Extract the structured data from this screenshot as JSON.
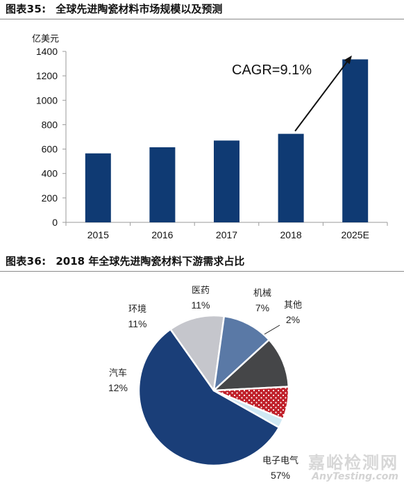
{
  "figure1": {
    "label": "图表35:",
    "title": "全球先进陶瓷材料市场规模以及预测"
  },
  "figure2": {
    "label": "图表36:",
    "title": "2018 年全球先进陶瓷材料下游需求占比"
  },
  "watermark": {
    "main": "嘉峪检测网",
    "sub": "AnyTesting.com"
  },
  "colors": {
    "bar": "#0f3a73",
    "axis": "#9a9a9a",
    "arrow": "#111111"
  },
  "chart_data": [
    {
      "type": "bar",
      "ylabel": "亿美元",
      "categories": [
        "2015",
        "2016",
        "2017",
        "2018",
        "2025E"
      ],
      "values": [
        565,
        615,
        670,
        725,
        1335
      ],
      "ylim": [
        0,
        1400
      ],
      "yticks": [
        0,
        200,
        400,
        600,
        800,
        1000,
        1200,
        1400
      ],
      "grid": false,
      "annotation": "CAGR=9.1%"
    },
    {
      "type": "pie",
      "slices": [
        {
          "name": "电子电气",
          "pct_label": "57%",
          "value": 57,
          "color": "#1a3e78",
          "pattern": "none"
        },
        {
          "name": "汽车",
          "pct_label": "12%",
          "value": 12,
          "color": "#c5c6cc",
          "pattern": "none"
        },
        {
          "name": "环境",
          "pct_label": "11%",
          "value": 11,
          "color": "#5a79a6",
          "pattern": "none"
        },
        {
          "name": "医药",
          "pct_label": "11%",
          "value": 11,
          "color": "#454648",
          "pattern": "none"
        },
        {
          "name": "机械",
          "pct_label": "7%",
          "value": 7,
          "color": "#c0202a",
          "pattern": "dots"
        },
        {
          "name": "其他",
          "pct_label": "2%",
          "value": 2,
          "color": "#cfe8f3",
          "pattern": "none"
        }
      ]
    }
  ]
}
